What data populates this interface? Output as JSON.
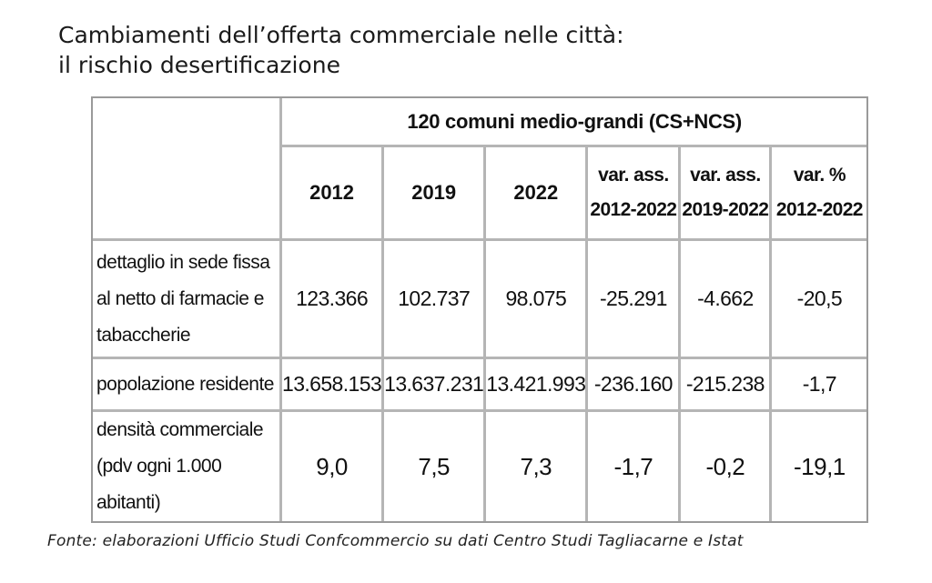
{
  "title": {
    "line1": "Cambiamenti dell’offerta commerciale nelle città:",
    "line2": "il rischio desertificazione"
  },
  "table": {
    "group_header": "120 comuni medio-grandi (CS+NCS)",
    "columns": [
      {
        "line1": "2012",
        "line2": ""
      },
      {
        "line1": "2019",
        "line2": ""
      },
      {
        "line1": "2022",
        "line2": ""
      },
      {
        "line1": "var. ass.",
        "line2": "2012-2022"
      },
      {
        "line1": "var. ass.",
        "line2": "2019-2022"
      },
      {
        "line1": "var. %",
        "line2": "2012-2022"
      }
    ],
    "rows": [
      {
        "label_lines": [
          "dettaglio in sede fissa",
          "al netto di farmacie e",
          "tabaccherie"
        ],
        "values": [
          "123.366",
          "102.737",
          "98.075",
          "-25.291",
          "-4.662",
          "-20,5"
        ]
      },
      {
        "label_lines": [
          "popolazione residente"
        ],
        "values": [
          "13.658.153",
          "13.637.231",
          "13.421.993",
          "-236.160",
          "-215.238",
          "-1,7"
        ]
      },
      {
        "label_lines": [
          "densità commerciale",
          "(pdv ogni 1.000",
          "abitanti)"
        ],
        "values": [
          "9,0",
          "7,5",
          "7,3",
          "-1,7",
          "-0,2",
          "-19,1"
        ]
      }
    ]
  },
  "source": "Fonte: elaborazioni Ufficio Studi Confcommercio su dati Centro Studi Tagliacarne e Istat"
}
